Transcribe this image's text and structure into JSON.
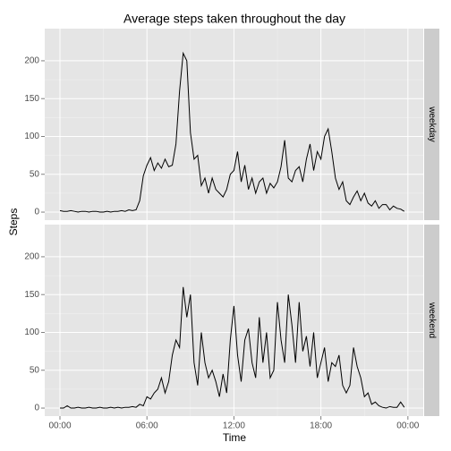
{
  "chart_data": {
    "type": "line",
    "title": "Average steps taken throughout the day",
    "x_label": "Time",
    "y_label": "Steps",
    "x": [
      0,
      0.25,
      0.5,
      0.75,
      1,
      1.25,
      1.5,
      1.75,
      2,
      2.25,
      2.5,
      2.75,
      3,
      3.25,
      3.5,
      3.75,
      4,
      4.25,
      4.5,
      4.75,
      5,
      5.25,
      5.5,
      5.75,
      6,
      6.25,
      6.5,
      6.75,
      7,
      7.25,
      7.5,
      7.75,
      8,
      8.25,
      8.5,
      8.75,
      9,
      9.25,
      9.5,
      9.75,
      10,
      10.25,
      10.5,
      10.75,
      11,
      11.25,
      11.5,
      11.75,
      12,
      12.25,
      12.5,
      12.75,
      13,
      13.25,
      13.5,
      13.75,
      14,
      14.25,
      14.5,
      14.75,
      15,
      15.25,
      15.5,
      15.75,
      16,
      16.25,
      16.5,
      16.75,
      17,
      17.25,
      17.5,
      17.75,
      18,
      18.25,
      18.5,
      18.75,
      19,
      19.25,
      19.5,
      19.75,
      20,
      20.25,
      20.5,
      20.75,
      21,
      21.25,
      21.5,
      21.75,
      22,
      22.25,
      22.5,
      22.75,
      23,
      23.25,
      23.5,
      23.75
    ],
    "series": [
      {
        "name": "weekday",
        "color": "#000000",
        "values": [
          2,
          1,
          1,
          2,
          1,
          0,
          1,
          1,
          0,
          1,
          1,
          0,
          0,
          1,
          0,
          1,
          1,
          2,
          1,
          3,
          2,
          3,
          15,
          48,
          62,
          72,
          55,
          65,
          58,
          70,
          60,
          62,
          90,
          160,
          210,
          200,
          105,
          70,
          75,
          35,
          45,
          25,
          45,
          30,
          25,
          20,
          30,
          50,
          55,
          80,
          40,
          62,
          30,
          45,
          25,
          40,
          45,
          25,
          38,
          32,
          40,
          60,
          95,
          45,
          40,
          55,
          60,
          40,
          70,
          90,
          55,
          80,
          70,
          100,
          110,
          80,
          45,
          30,
          40,
          15,
          10,
          20,
          28,
          15,
          25,
          12,
          8,
          15,
          5,
          10,
          10,
          3,
          8,
          5,
          4,
          1
        ]
      },
      {
        "name": "weekend",
        "color": "#000000",
        "values": [
          0,
          0,
          3,
          0,
          0,
          1,
          0,
          0,
          1,
          0,
          0,
          1,
          0,
          0,
          1,
          0,
          1,
          0,
          1,
          1,
          2,
          1,
          5,
          3,
          15,
          12,
          20,
          25,
          40,
          20,
          35,
          70,
          90,
          80,
          160,
          120,
          150,
          60,
          30,
          100,
          60,
          40,
          50,
          35,
          15,
          45,
          20,
          90,
          135,
          70,
          35,
          90,
          105,
          60,
          40,
          120,
          60,
          100,
          40,
          50,
          140,
          90,
          60,
          150,
          110,
          60,
          140,
          75,
          95,
          55,
          100,
          40,
          60,
          80,
          35,
          60,
          55,
          70,
          30,
          20,
          30,
          80,
          55,
          40,
          15,
          20,
          5,
          8,
          3,
          1,
          0,
          2,
          1,
          1,
          8,
          1
        ]
      }
    ],
    "xlim": [
      -1.05,
      25.06
    ],
    "xticks": [
      {
        "value": 0,
        "label": "00:00"
      },
      {
        "value": 6,
        "label": "06:00"
      },
      {
        "value": 12,
        "label": "12:00"
      },
      {
        "value": 18,
        "label": "18:00"
      },
      {
        "value": 24,
        "label": "00:00"
      }
    ],
    "ylim": [
      -10.6,
      242.5
    ],
    "yticks": [
      0,
      50,
      100,
      150,
      200
    ],
    "grid": true
  }
}
